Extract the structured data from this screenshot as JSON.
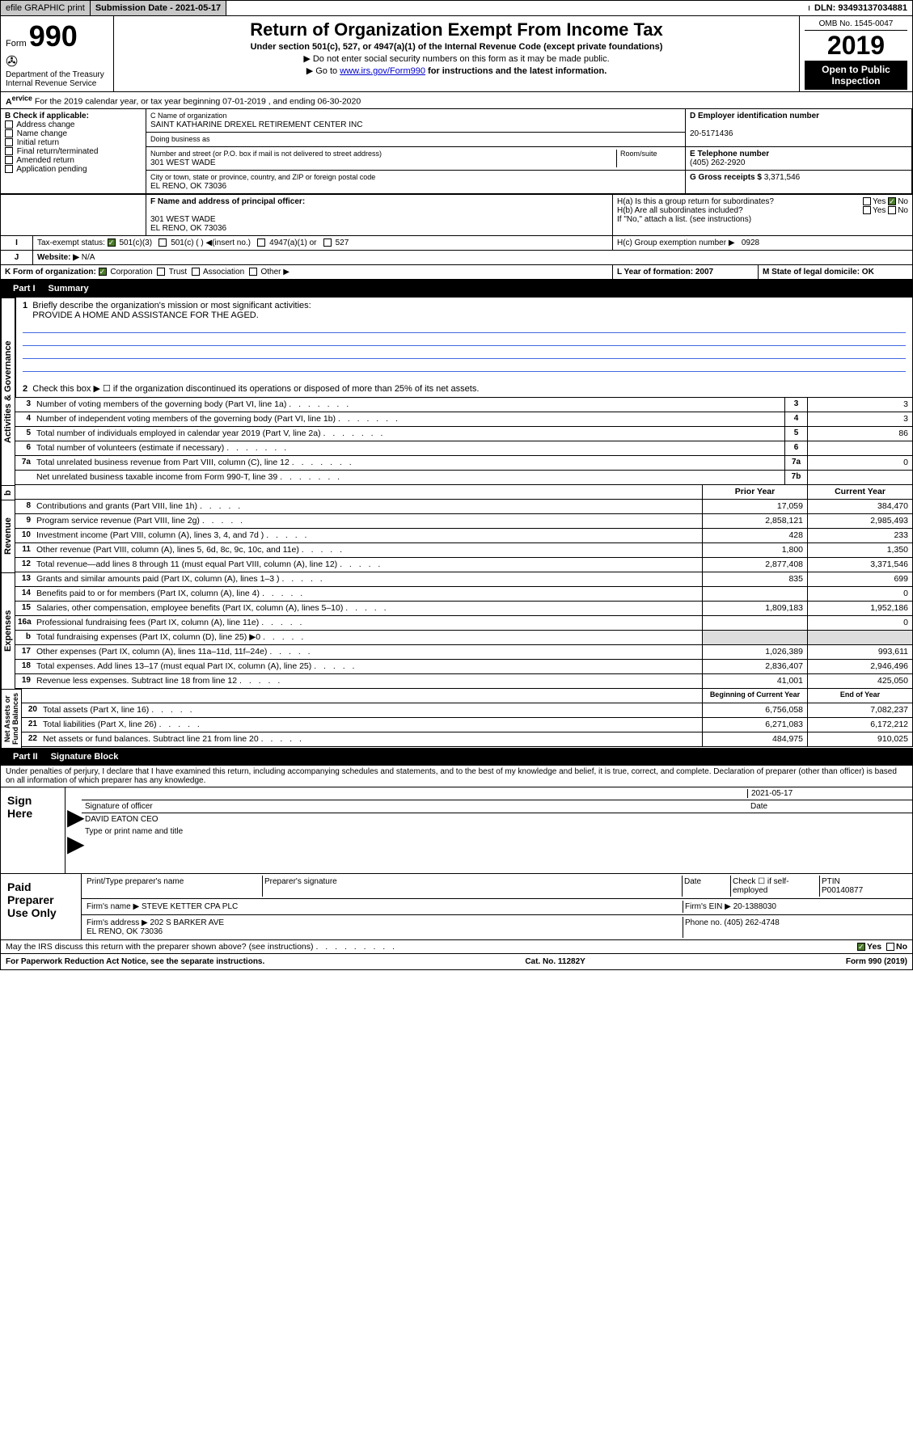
{
  "topbar": {
    "efile": "efile GRAPHIC print",
    "sub_label": "Submission Date - 2021-05-17",
    "dln": "DLN: 93493137034881"
  },
  "header": {
    "form": "Form",
    "f990": "990",
    "dept": "Department of the Treasury\nInternal Revenue Service",
    "title": "Return of Organization Exempt From Income Tax",
    "sub1": "Under section 501(c), 527, or 4947(a)(1) of the Internal Revenue Code (except private foundations)",
    "sub2": "▶ Do not enter social security numbers on this form as it may be made public.",
    "sub3_pre": "▶ Go to ",
    "sub3_link": "www.irs.gov/Form990",
    "sub3_post": " for instructions and the latest information.",
    "omb": "OMB No. 1545-0047",
    "year": "2019",
    "open": "Open to Public\nInspection"
  },
  "line_a": "For the 2019 calendar year, or tax year beginning 07-01-2019     , and ending 06-30-2020",
  "boxB": {
    "label": "B Check if applicable:",
    "items": [
      "Address change",
      "Name change",
      "Initial return",
      "Final return/terminated",
      "Amended return",
      "Application pending"
    ]
  },
  "boxC": {
    "label": "C Name of organization",
    "name": "SAINT KATHARINE DREXEL RETIREMENT CENTER INC",
    "dba": "Doing business as",
    "addr_label": "Number and street (or P.O. box if mail is not delivered to street address)",
    "addr": "301 WEST WADE",
    "room": "Room/suite",
    "city_label": "City or town, state or province, country, and ZIP or foreign postal code",
    "city": "EL RENO, OK  73036"
  },
  "boxD": {
    "label": "D Employer identification number",
    "val": "20-5171436"
  },
  "boxE": {
    "label": "E Telephone number",
    "val": "(405) 262-2920"
  },
  "boxG": {
    "label": "G Gross receipts $",
    "val": "3,371,546"
  },
  "boxF": {
    "label": "F Name and address of principal officer:",
    "addr": "301 WEST WADE\nEL RENO, OK  73036"
  },
  "boxH": {
    "a": "H(a)  Is this a group return for subordinates?",
    "b": "H(b)  Are all subordinates included?",
    "note": "If \"No,\" attach a list. (see instructions)",
    "c": "H(c)  Group exemption number ▶",
    "c_val": "0928",
    "yes": "Yes",
    "no": "No"
  },
  "boxI": {
    "label": "Tax-exempt status:",
    "opts": [
      "501(c)(3)",
      "501(c) (   ) ◀(insert no.)",
      "4947(a)(1) or",
      "527"
    ]
  },
  "boxJ": {
    "label": "Website: ▶",
    "val": "N/A"
  },
  "boxK": {
    "label": "K Form of organization:",
    "opts": [
      "Corporation",
      "Trust",
      "Association",
      "Other ▶"
    ]
  },
  "boxL": {
    "label": "L Year of formation: 2007"
  },
  "boxM": {
    "label": "M State of legal domicile: OK"
  },
  "part1": {
    "hdr": "Part I",
    "title": "Summary"
  },
  "summary": {
    "l1": "Briefly describe the organization's mission or most significant activities:",
    "l1v": "PROVIDE A HOME AND ASSISTANCE FOR THE AGED.",
    "l2": "Check this box ▶ ☐  if the organization discontinued its operations or disposed of more than 25% of its net assets.",
    "rows": [
      {
        "n": "3",
        "d": "Number of voting members of the governing body (Part VI, line 1a)",
        "b": "3",
        "v": "3"
      },
      {
        "n": "4",
        "d": "Number of independent voting members of the governing body (Part VI, line 1b)",
        "b": "4",
        "v": "3"
      },
      {
        "n": "5",
        "d": "Total number of individuals employed in calendar year 2019 (Part V, line 2a)",
        "b": "5",
        "v": "86"
      },
      {
        "n": "6",
        "d": "Total number of volunteers (estimate if necessary)",
        "b": "6",
        "v": ""
      },
      {
        "n": "7a",
        "d": "Total unrelated business revenue from Part VIII, column (C), line 12",
        "b": "7a",
        "v": "0"
      },
      {
        "n": "",
        "d": "Net unrelated business taxable income from Form 990-T, line 39",
        "b": "7b",
        "v": ""
      }
    ],
    "hdr_prior": "Prior Year",
    "hdr_curr": "Current Year",
    "rev": [
      {
        "n": "8",
        "d": "Contributions and grants (Part VIII, line 1h)",
        "p": "17,059",
        "c": "384,470"
      },
      {
        "n": "9",
        "d": "Program service revenue (Part VIII, line 2g)",
        "p": "2,858,121",
        "c": "2,985,493"
      },
      {
        "n": "10",
        "d": "Investment income (Part VIII, column (A), lines 3, 4, and 7d )",
        "p": "428",
        "c": "233"
      },
      {
        "n": "11",
        "d": "Other revenue (Part VIII, column (A), lines 5, 6d, 8c, 9c, 10c, and 11e)",
        "p": "1,800",
        "c": "1,350"
      },
      {
        "n": "12",
        "d": "Total revenue—add lines 8 through 11 (must equal Part VIII, column (A), line 12)",
        "p": "2,877,408",
        "c": "3,371,546"
      }
    ],
    "exp": [
      {
        "n": "13",
        "d": "Grants and similar amounts paid (Part IX, column (A), lines 1–3 )",
        "p": "835",
        "c": "699"
      },
      {
        "n": "14",
        "d": "Benefits paid to or for members (Part IX, column (A), line 4)",
        "p": "",
        "c": "0"
      },
      {
        "n": "15",
        "d": "Salaries, other compensation, employee benefits (Part IX, column (A), lines 5–10)",
        "p": "1,809,183",
        "c": "1,952,186"
      },
      {
        "n": "16a",
        "d": "Professional fundraising fees (Part IX, column (A), line 11e)",
        "p": "",
        "c": "0"
      },
      {
        "n": "b",
        "d": "Total fundraising expenses (Part IX, column (D), line 25) ▶0",
        "p": "shade",
        "c": "shade"
      },
      {
        "n": "17",
        "d": "Other expenses (Part IX, column (A), lines 11a–11d, 11f–24e)",
        "p": "1,026,389",
        "c": "993,611"
      },
      {
        "n": "18",
        "d": "Total expenses. Add lines 13–17 (must equal Part IX, column (A), line 25)",
        "p": "2,836,407",
        "c": "2,946,496"
      },
      {
        "n": "19",
        "d": "Revenue less expenses. Subtract line 18 from line 12",
        "p": "41,001",
        "c": "425,050"
      }
    ],
    "hdr_beg": "Beginning of Current Year",
    "hdr_end": "End of Year",
    "net": [
      {
        "n": "20",
        "d": "Total assets (Part X, line 16)",
        "p": "6,756,058",
        "c": "7,082,237"
      },
      {
        "n": "21",
        "d": "Total liabilities (Part X, line 26)",
        "p": "6,271,083",
        "c": "6,172,212"
      },
      {
        "n": "22",
        "d": "Net assets or fund balances. Subtract line 21 from line 20",
        "p": "484,975",
        "c": "910,025"
      }
    ]
  },
  "part2": {
    "hdr": "Part II",
    "title": "Signature Block",
    "decl": "Under penalties of perjury, I declare that I have examined this return, including accompanying schedules and statements, and to the best of my knowledge and belief, it is true, correct, and complete. Declaration of preparer (other than officer) is based on all information of which preparer has any knowledge."
  },
  "sign": {
    "label": "Sign Here",
    "sig": "Signature of officer",
    "date": "2021-05-17",
    "date_l": "Date",
    "name": "DAVID EATON  CEO",
    "name_l": "Type or print name and title"
  },
  "paid": {
    "label": "Paid Preparer Use Only",
    "h1": "Print/Type preparer's name",
    "h2": "Preparer's signature",
    "h3": "Date",
    "h4": "Check ☐ if self-employed",
    "h5": "PTIN",
    "ptin": "P00140877",
    "firm_l": "Firm's name    ▶",
    "firm": "STEVE KETTER CPA PLC",
    "ein_l": "Firm's EIN ▶",
    "ein": "20-1388030",
    "addr_l": "Firm's address ▶",
    "addr": "202 S BARKER AVE\nEL RENO, OK  73036",
    "phone_l": "Phone no.",
    "phone": "(405) 262-4748"
  },
  "discuss": "May the IRS discuss this return with the preparer shown above? (see instructions)",
  "footer": {
    "l": "For Paperwork Reduction Act Notice, see the separate instructions.",
    "c": "Cat. No. 11282Y",
    "r": "Form 990 (2019)"
  }
}
